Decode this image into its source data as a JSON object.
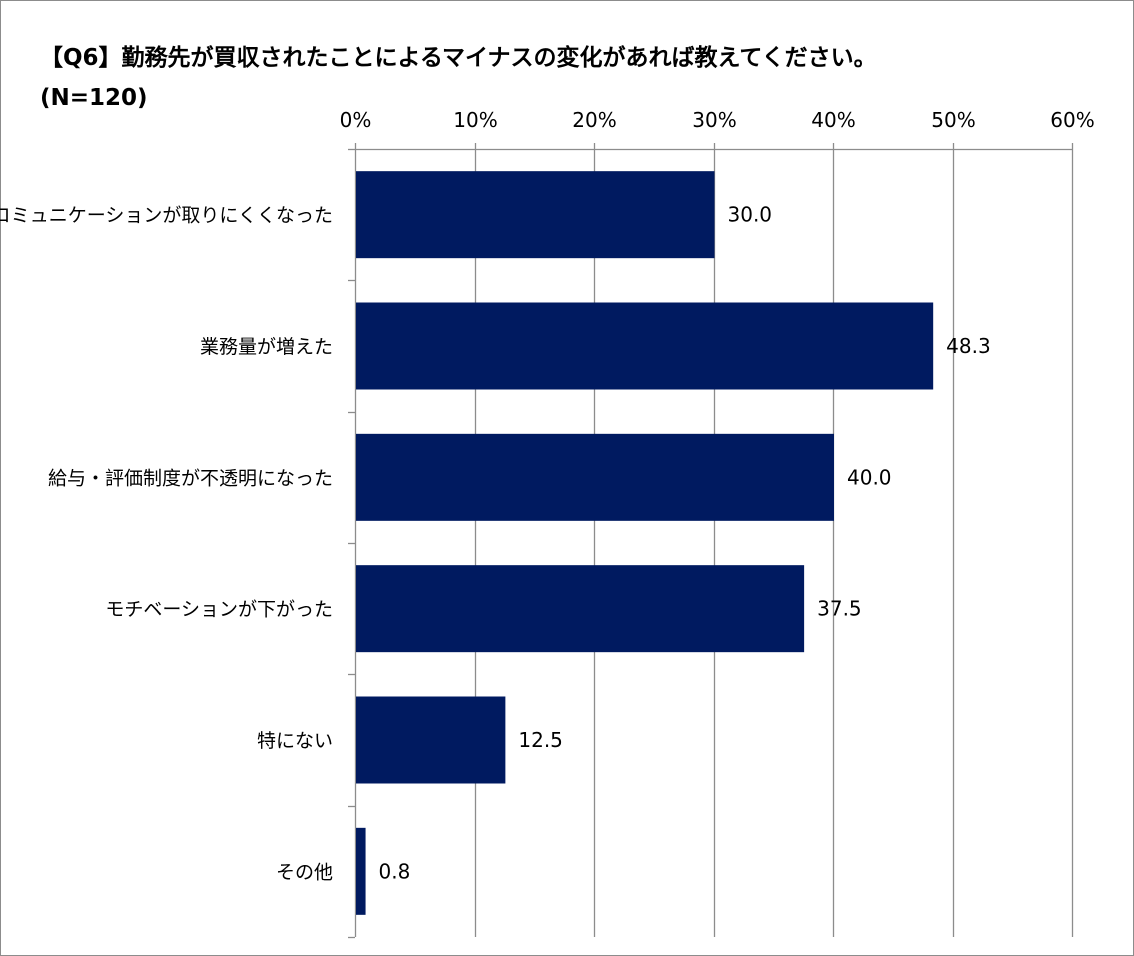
{
  "chart_data": {
    "type": "bar",
    "orientation": "horizontal",
    "title": "【Q6】勤務先が買収されたことによるマイナスの変化があれば教えてください。",
    "subtitle": "(N=120)",
    "categories": [
      "コミュニケーションが取りにくくなった",
      "業務量が増えた",
      "給与・評価制度が不透明になった",
      "モチベーションが下がった",
      "特にない",
      "その他"
    ],
    "values": [
      30.0,
      48.3,
      40.0,
      37.5,
      12.5,
      0.8
    ],
    "value_labels": [
      "30.0",
      "48.3",
      "40.0",
      "37.5",
      "12.5",
      "0.8"
    ],
    "xlim": [
      0,
      60
    ],
    "xticks": [
      0,
      10,
      20,
      30,
      40,
      50,
      60
    ],
    "xtick_labels": [
      "0%",
      "10%",
      "20%",
      "30%",
      "40%",
      "50%",
      "60%"
    ],
    "x_axis_position": "top",
    "grid": true,
    "legend": "none",
    "colors": {
      "bar": "#001a60",
      "grid": "#8c8c8c",
      "axis": "#8c8c8c",
      "text": "#000000"
    }
  }
}
